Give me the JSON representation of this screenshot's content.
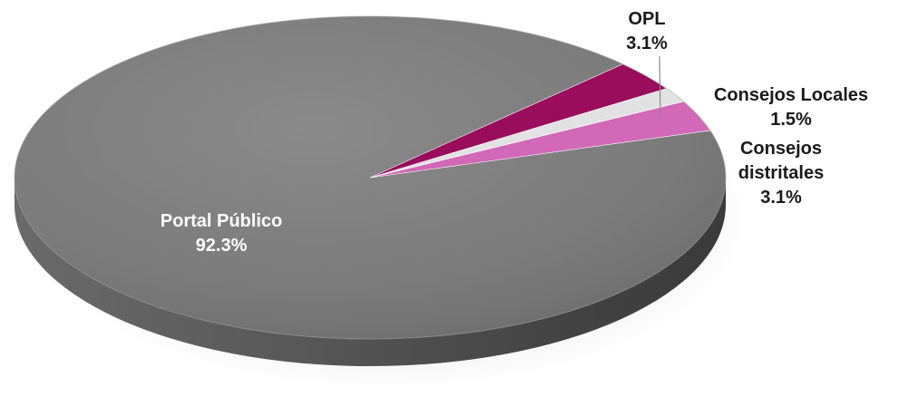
{
  "chart_data": {
    "type": "pie",
    "title": "",
    "style": "3d-tilted",
    "slices": [
      {
        "label": "Portal Público",
        "lines": [
          "Portal Público",
          "92.3%"
        ],
        "value": 92.3,
        "percent_label": "92.3%",
        "color": "#7b7b7b"
      },
      {
        "label": "OPL",
        "lines": [
          "OPL",
          "3.1%"
        ],
        "value": 3.1,
        "percent_label": "3.1%",
        "color": "#d268b8"
      },
      {
        "label": "Consejos Locales",
        "lines": [
          "Consejos Locales",
          "1.5%"
        ],
        "value": 1.5,
        "percent_label": "1.5%",
        "color": "#e2e2e2"
      },
      {
        "label": "Consejos distritales",
        "lines": [
          "Consejos",
          "distritales",
          "3.1%"
        ],
        "value": 3.1,
        "percent_label": "3.1%",
        "color": "#990d5c"
      }
    ],
    "label_colors": {
      "inside": "#ffffff",
      "outside": "#1a1a1a"
    },
    "legend": "none"
  }
}
